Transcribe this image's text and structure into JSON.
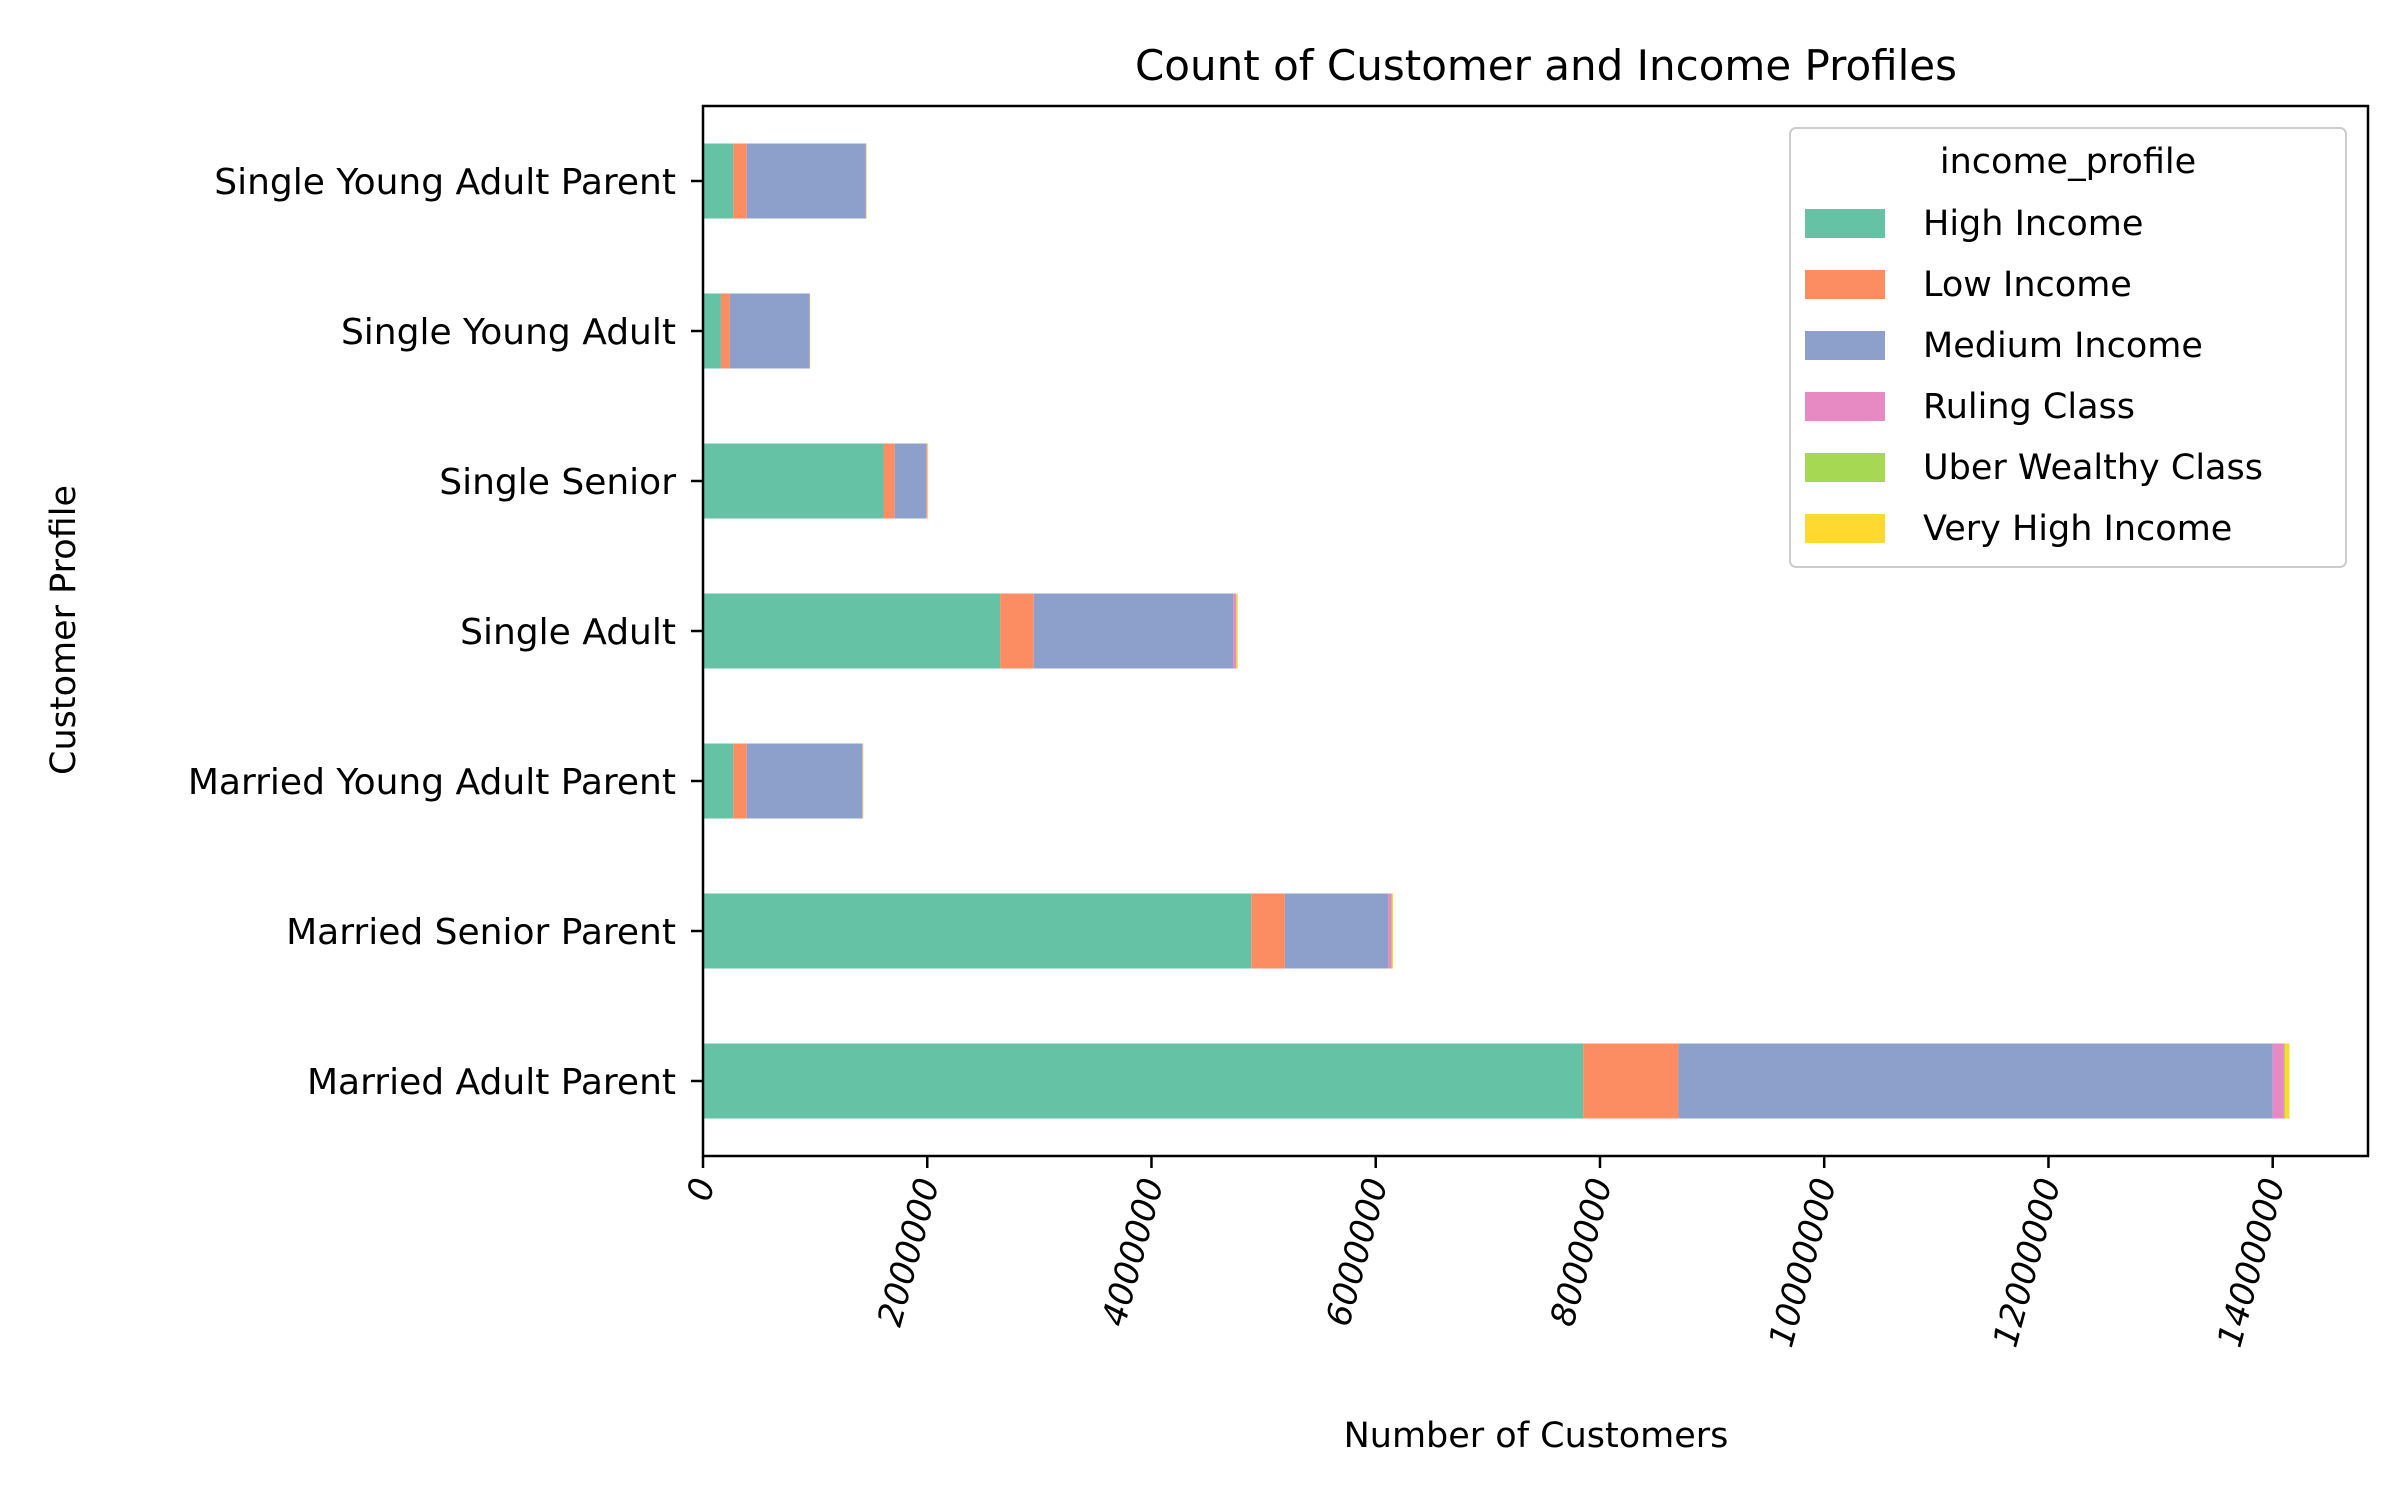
{
  "chart_data": {
    "type": "bar",
    "orientation": "horizontal",
    "stacked": true,
    "title": "Count of Customer and Income Profiles",
    "xlabel": "Number of Customers",
    "ylabel": "Customer Profile",
    "xlim": [
      0,
      14850000
    ],
    "xticks": [
      0,
      2000000,
      4000000,
      6000000,
      8000000,
      10000000,
      12000000,
      14000000
    ],
    "xtick_labels": [
      "0",
      "2000000",
      "4000000",
      "6000000",
      "8000000",
      "10000000",
      "12000000",
      "14000000"
    ],
    "xtick_rotation": 75,
    "grid": false,
    "legend": {
      "title": "income_profile",
      "placement": "top-right"
    },
    "categories": [
      "Married Adult Parent",
      "Married Senior Parent",
      "Married Young Adult Parent",
      "Single Adult",
      "Single Senior",
      "Single Young Adult",
      "Single Young Adult Parent"
    ],
    "series": [
      {
        "name": "High Income",
        "color": "#66c2a5",
        "values": [
          7850000,
          4890000,
          270000,
          2650000,
          1610000,
          160000,
          270000
        ]
      },
      {
        "name": "Low Income",
        "color": "#fc8d62",
        "values": [
          850000,
          300000,
          120000,
          300000,
          100000,
          80000,
          120000
        ]
      },
      {
        "name": "Medium Income",
        "color": "#8da0cb",
        "values": [
          5300000,
          920000,
          1030000,
          1780000,
          280000,
          710000,
          1060000
        ]
      },
      {
        "name": "Ruling Class",
        "color": "#e78ac3",
        "values": [
          100000,
          30000,
          5000,
          25000,
          10000,
          3000,
          5000
        ]
      },
      {
        "name": "Uber Wealthy Class",
        "color": "#a6d854",
        "values": [
          10000,
          5000,
          2000,
          5000,
          3000,
          1000,
          2000
        ]
      },
      {
        "name": "Very High Income",
        "color": "#ffd92f",
        "values": [
          40000,
          10000,
          3000,
          10000,
          5000,
          2000,
          3000
        ]
      }
    ]
  }
}
